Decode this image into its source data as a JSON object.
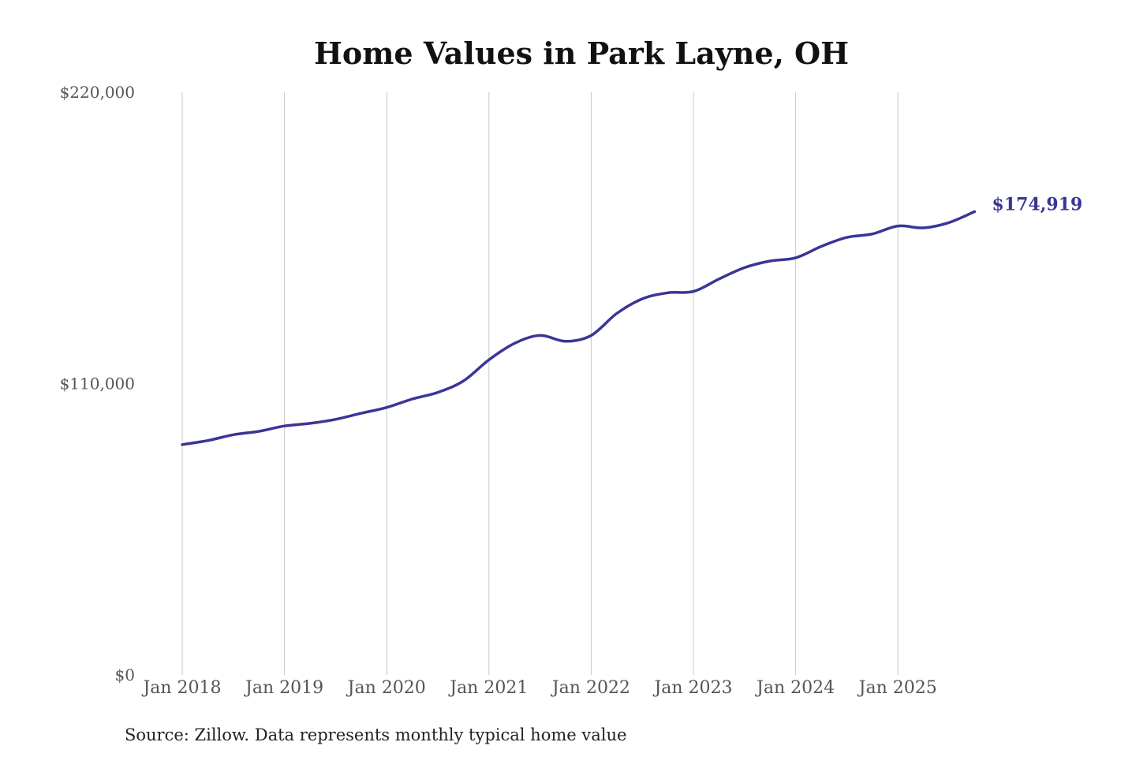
{
  "chart_data": {
    "type": "line",
    "title": "Home Values in Park Layne, OH",
    "source": "Source: Zillow. Data represents monthly typical home value",
    "ylim": [
      0,
      220000
    ],
    "y_ticks": [
      {
        "value": 0,
        "label": "$0"
      },
      {
        "value": 110000,
        "label": "$110,000"
      },
      {
        "value": 220000,
        "label": "$220,000"
      }
    ],
    "x_ticks": [
      "Jan 2018",
      "Jan 2019",
      "Jan 2020",
      "Jan 2021",
      "Jan 2022",
      "Jan 2023",
      "Jan 2024",
      "Jan 2025"
    ],
    "grid": "vertical",
    "line_color": "#3a3596",
    "end_label": "$174,919",
    "series": [
      {
        "x": [
          "2018-01",
          "2018-04",
          "2018-07",
          "2018-10",
          "2019-01",
          "2019-04",
          "2019-07",
          "2019-10",
          "2020-01",
          "2020-04",
          "2020-07",
          "2020-10",
          "2021-01",
          "2021-04",
          "2021-07",
          "2021-10",
          "2022-01",
          "2022-04",
          "2022-07",
          "2022-10",
          "2023-01",
          "2023-04",
          "2023-07",
          "2023-10",
          "2024-01",
          "2024-04",
          "2024-07",
          "2024-10",
          "2025-01",
          "2025-04",
          "2025-07",
          "2025-10"
        ],
        "values": [
          87000,
          88500,
          90700,
          92000,
          94000,
          95000,
          96500,
          98800,
          101000,
          104200,
          106700,
          111000,
          119000,
          125200,
          128200,
          126000,
          128200,
          136500,
          142000,
          144300,
          144800,
          149500,
          153800,
          156300,
          157500,
          161800,
          165200,
          166500,
          169500,
          168800,
          170800,
          174919
        ]
      }
    ]
  }
}
